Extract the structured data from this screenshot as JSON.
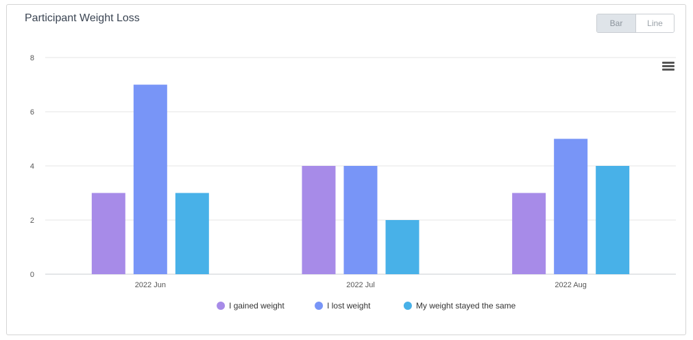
{
  "chart_data": {
    "type": "bar",
    "title": "Participant Weight Loss",
    "categories": [
      "2022 Jun",
      "2022 Jul",
      "2022 Aug"
    ],
    "series": [
      {
        "name": "I gained weight",
        "color": "#a78be8",
        "values": [
          3,
          4,
          3
        ]
      },
      {
        "name": "I lost weight",
        "color": "#7895f7",
        "values": [
          7,
          4,
          5
        ]
      },
      {
        "name": "My weight stayed the same",
        "color": "#48b1e8",
        "values": [
          3,
          2,
          4
        ]
      }
    ],
    "ylim": [
      0,
      8
    ],
    "yticks": [
      0,
      2,
      4,
      6,
      8
    ],
    "grid": true,
    "legend": "bottom-center"
  },
  "toggle": {
    "bar_label": "Bar",
    "line_label": "Line",
    "active": "bar"
  },
  "menu_icon": "hamburger-menu-icon"
}
